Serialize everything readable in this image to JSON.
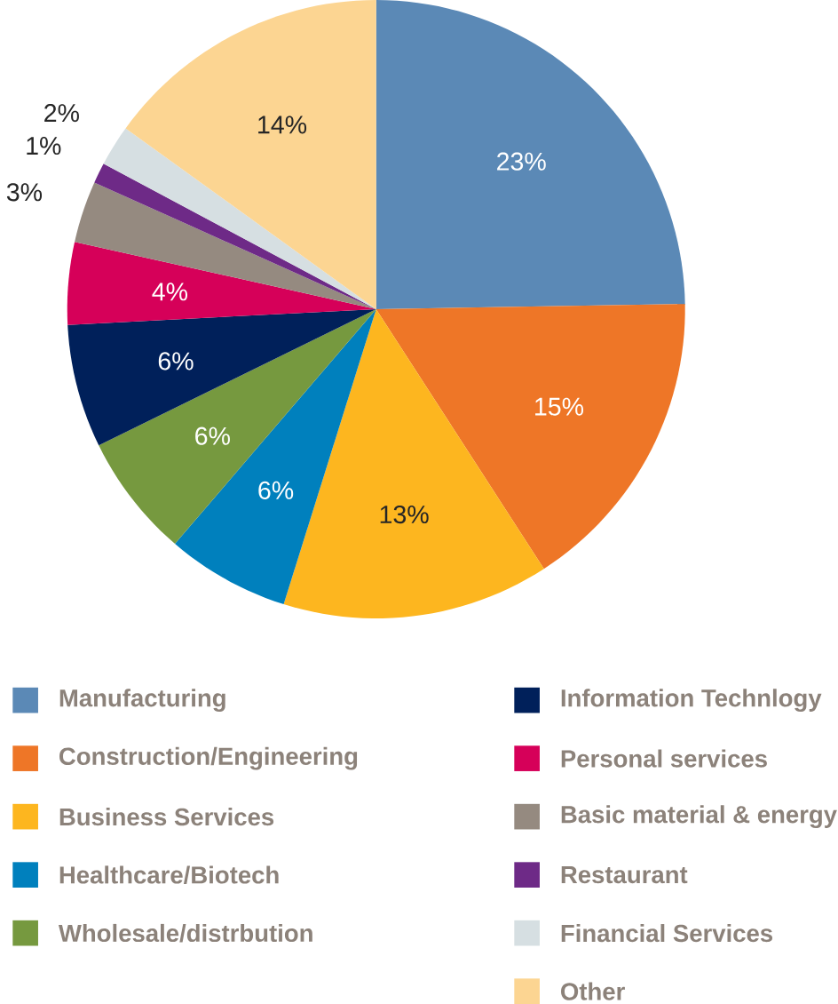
{
  "chart_data": {
    "type": "pie",
    "categories": [
      "Manufacturing",
      "Construction/Engineering",
      "Business Services",
      "Healthcare/Biotech",
      "Wholesale/distrbution",
      "Information Technlogy",
      "Personal services",
      "Basic material & energy",
      "Restaurant",
      "Financial Services",
      "Other"
    ],
    "values": [
      23,
      15,
      13,
      6,
      6,
      6,
      4,
      3,
      1,
      2,
      14
    ],
    "value_labels": [
      "23%",
      "15%",
      "13%",
      "6%",
      "6%",
      "6%",
      "4%",
      "3%",
      "1%",
      "2%",
      "14%"
    ],
    "colors": [
      "#5b89b6",
      "#ee7627",
      "#fdb61f",
      "#0080bd",
      "#76993f",
      "#00205a",
      "#d60059",
      "#958a80",
      "#6e2a87",
      "#d6dfe2",
      "#fcd592"
    ],
    "legend": "bottom"
  }
}
